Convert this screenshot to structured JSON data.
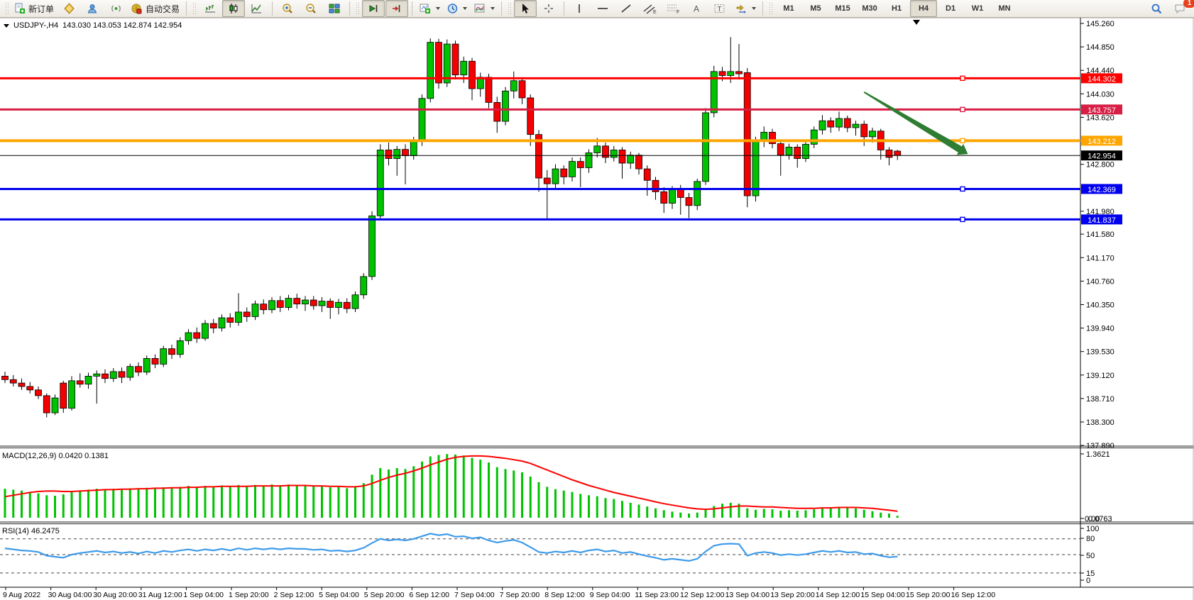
{
  "toolbar": {
    "new_order_label": "新订单",
    "auto_trading_label": "自动交易",
    "timeframes": [
      "M1",
      "M5",
      "M15",
      "M30",
      "H1",
      "H4",
      "D1",
      "W1",
      "MN"
    ],
    "active_timeframe": "H4",
    "notification_badge": "1",
    "icon_letters": {
      "text_tool": "A",
      "label_tool": "T",
      "channel_tool": "E",
      "fibo_tool": "F"
    }
  },
  "header": {
    "symbol_period": "USDJPY-,H4",
    "ohlc": "143.030 143.053 142.874 142.954"
  },
  "indicators": {
    "macd": {
      "label": "MACD(12,26,9) 0.0420 0.1381",
      "axis_max": "1.3621",
      "axis_min_primary": "0.0763",
      "axis_min_overlap": "0.00"
    },
    "rsi": {
      "label": "RSI(14) 46.2475",
      "axis_labels": [
        "100",
        "80",
        "50",
        "15",
        "0"
      ]
    }
  },
  "chart_data": {
    "type": "candlestick",
    "symbol": "USDJPY-",
    "timeframe": "H4",
    "title": "USDJPY-,H4",
    "ohlc_current": {
      "open": 143.03,
      "high": 143.053,
      "low": 142.874,
      "close": 142.954
    },
    "colors": {
      "up": "#00C300",
      "down": "#F50000",
      "wick": "#000000",
      "macd_hist": "#00C300",
      "macd_signal": "#FF0000",
      "rsi": "#3E9BEA",
      "level_dash": "#444444"
    },
    "y_axis": {
      "min": 137.89,
      "max": 145.26,
      "tick_labels": [
        "145.260",
        "144.850",
        "144.440",
        "144.030",
        "143.620",
        "142.800",
        "141.980",
        "141.580",
        "141.170",
        "140.760",
        "140.350",
        "139.940",
        "139.530",
        "139.120",
        "138.710",
        "138.300",
        "137.890"
      ]
    },
    "x_labels": [
      "9 Aug 2022",
      "30 Aug 04:00",
      "30 Aug 20:00",
      "31 Aug 12:00",
      "1 Sep 04:00",
      "1 Sep 20:00",
      "2 Sep 12:00",
      "5 Sep 04:00",
      "5 Sep 20:00",
      "6 Sep 12:00",
      "7 Sep 04:00",
      "7 Sep 20:00",
      "8 Sep 12:00",
      "9 Sep 04:00",
      "11 Sep 23:00",
      "12 Sep 12:00",
      "13 Sep 04:00",
      "13 Sep 20:00",
      "14 Sep 12:00",
      "15 Sep 04:00",
      "15 Sep 20:00",
      "16 Sep 12:00"
    ],
    "hlines": [
      {
        "value": 144.302,
        "label": "144.302",
        "color": "#FF0000",
        "width": 3
      },
      {
        "value": 143.757,
        "label": "143.757",
        "color": "#D81E45",
        "width": 3
      },
      {
        "value": 143.212,
        "label": "143.212",
        "color": "#FFA500",
        "width": 4
      },
      {
        "value": 142.954,
        "label": "142.954",
        "color": "#000000",
        "width": 1
      },
      {
        "value": 142.369,
        "label": "142.369",
        "color": "#0000EE",
        "width": 3
      },
      {
        "value": 141.837,
        "label": "141.837",
        "color": "#0000EE",
        "width": 3
      }
    ],
    "candles": [
      [
        139.1,
        139.18,
        138.98,
        139.04
      ],
      [
        139.04,
        139.12,
        138.92,
        138.98
      ],
      [
        138.98,
        139.06,
        138.86,
        138.92
      ],
      [
        138.92,
        139.0,
        138.8,
        138.86
      ],
      [
        138.86,
        138.92,
        138.7,
        138.76
      ],
      [
        138.76,
        138.8,
        138.38,
        138.46
      ],
      [
        138.46,
        138.78,
        138.42,
        138.72
      ],
      [
        138.98,
        139.02,
        138.46,
        138.54
      ],
      [
        138.54,
        139.1,
        138.5,
        139.02
      ],
      [
        139.02,
        139.15,
        138.9,
        138.96
      ],
      [
        138.96,
        139.16,
        138.88,
        139.1
      ],
      [
        139.1,
        139.2,
        138.62,
        139.14
      ],
      [
        139.14,
        139.22,
        138.98,
        139.06
      ],
      [
        139.06,
        139.24,
        139.0,
        139.18
      ],
      [
        139.18,
        139.25,
        138.98,
        139.08
      ],
      [
        139.08,
        139.32,
        139.02,
        139.27
      ],
      [
        139.27,
        139.34,
        139.1,
        139.17
      ],
      [
        139.17,
        139.46,
        139.12,
        139.41
      ],
      [
        139.41,
        139.48,
        139.24,
        139.31
      ],
      [
        139.31,
        139.63,
        139.26,
        139.58
      ],
      [
        139.58,
        139.65,
        139.4,
        139.48
      ],
      [
        139.48,
        139.78,
        139.42,
        139.72
      ],
      [
        139.72,
        139.92,
        139.65,
        139.86
      ],
      [
        139.86,
        139.95,
        139.68,
        139.76
      ],
      [
        139.76,
        140.08,
        139.72,
        140.02
      ],
      [
        140.02,
        140.1,
        139.85,
        139.94
      ],
      [
        139.94,
        140.18,
        139.88,
        140.12
      ],
      [
        140.12,
        140.2,
        139.95,
        140.04
      ],
      [
        140.04,
        140.55,
        139.98,
        140.22
      ],
      [
        140.22,
        140.3,
        140.05,
        140.14
      ],
      [
        140.14,
        140.42,
        140.08,
        140.36
      ],
      [
        140.36,
        140.44,
        140.18,
        140.26
      ],
      [
        140.26,
        140.48,
        140.2,
        140.42
      ],
      [
        140.42,
        140.5,
        140.22,
        140.3
      ],
      [
        140.3,
        140.52,
        140.25,
        140.46
      ],
      [
        140.46,
        140.54,
        140.28,
        140.36
      ],
      [
        140.36,
        140.5,
        140.24,
        140.43
      ],
      [
        140.43,
        140.5,
        140.26,
        140.33
      ],
      [
        140.33,
        140.48,
        140.22,
        140.41
      ],
      [
        140.41,
        140.46,
        140.1,
        140.3
      ],
      [
        140.3,
        140.45,
        140.18,
        140.39
      ],
      [
        140.39,
        140.46,
        140.2,
        140.28
      ],
      [
        140.28,
        140.58,
        140.22,
        140.52
      ],
      [
        140.52,
        140.9,
        140.45,
        140.84
      ],
      [
        140.84,
        141.98,
        140.78,
        141.9
      ],
      [
        141.9,
        143.15,
        141.85,
        143.05
      ],
      [
        143.05,
        143.18,
        142.78,
        142.9
      ],
      [
        142.9,
        143.12,
        142.6,
        143.06
      ],
      [
        143.06,
        143.15,
        142.45,
        142.95
      ],
      [
        142.95,
        143.28,
        142.88,
        143.2
      ],
      [
        143.2,
        144.02,
        143.12,
        143.95
      ],
      [
        143.95,
        145.0,
        143.88,
        144.93
      ],
      [
        144.93,
        144.99,
        144.12,
        144.22
      ],
      [
        144.22,
        144.98,
        144.15,
        144.9
      ],
      [
        144.9,
        144.96,
        144.28,
        144.36
      ],
      [
        144.36,
        144.68,
        144.22,
        144.6
      ],
      [
        144.6,
        144.66,
        143.92,
        144.12
      ],
      [
        144.12,
        144.4,
        143.98,
        144.32
      ],
      [
        144.32,
        144.38,
        143.78,
        143.88
      ],
      [
        143.88,
        143.98,
        143.35,
        143.55
      ],
      [
        143.55,
        144.15,
        143.48,
        144.08
      ],
      [
        144.08,
        144.42,
        143.95,
        144.26
      ],
      [
        144.26,
        144.32,
        143.85,
        143.96
      ],
      [
        143.96,
        144.02,
        143.12,
        143.32
      ],
      [
        143.32,
        143.4,
        142.32,
        142.56
      ],
      [
        142.56,
        142.7,
        141.84,
        142.46
      ],
      [
        142.46,
        142.8,
        142.35,
        142.72
      ],
      [
        142.72,
        142.78,
        142.45,
        142.58
      ],
      [
        142.58,
        142.92,
        142.5,
        142.85
      ],
      [
        142.85,
        142.92,
        142.4,
        142.74
      ],
      [
        142.74,
        143.06,
        142.65,
        143.0
      ],
      [
        143.0,
        143.26,
        142.92,
        143.12
      ],
      [
        143.12,
        143.18,
        142.82,
        142.92
      ],
      [
        142.92,
        143.12,
        142.85,
        143.05
      ],
      [
        143.05,
        143.1,
        142.55,
        142.82
      ],
      [
        142.82,
        143.02,
        142.72,
        142.96
      ],
      [
        142.96,
        143.0,
        142.62,
        142.72
      ],
      [
        142.72,
        142.78,
        142.25,
        142.52
      ],
      [
        142.52,
        142.58,
        142.18,
        142.32
      ],
      [
        142.32,
        142.4,
        141.95,
        142.12
      ],
      [
        142.12,
        142.42,
        142.02,
        142.36
      ],
      [
        142.36,
        142.44,
        141.92,
        142.22
      ],
      [
        142.22,
        142.3,
        141.86,
        142.08
      ],
      [
        142.08,
        142.55,
        142.0,
        142.5
      ],
      [
        142.5,
        143.78,
        142.44,
        143.7
      ],
      [
        143.7,
        144.52,
        143.62,
        144.42
      ],
      [
        144.42,
        144.5,
        144.25,
        144.35
      ],
      [
        144.35,
        145.02,
        144.22,
        144.42
      ],
      [
        144.42,
        144.9,
        144.28,
        144.38
      ],
      [
        144.4,
        144.48,
        142.05,
        142.25
      ],
      [
        142.25,
        143.28,
        142.15,
        143.2
      ],
      [
        143.2,
        143.46,
        143.1,
        143.36
      ],
      [
        143.36,
        143.42,
        143.08,
        143.16
      ],
      [
        143.16,
        143.22,
        142.6,
        142.96
      ],
      [
        142.96,
        143.16,
        142.88,
        143.1
      ],
      [
        143.1,
        143.15,
        142.74,
        142.9
      ],
      [
        142.9,
        143.2,
        142.84,
        143.15
      ],
      [
        143.15,
        143.46,
        143.08,
        143.4
      ],
      [
        143.4,
        143.66,
        143.32,
        143.56
      ],
      [
        143.56,
        143.62,
        143.35,
        143.45
      ],
      [
        143.45,
        143.72,
        143.38,
        143.6
      ],
      [
        143.6,
        143.65,
        143.36,
        143.44
      ],
      [
        143.44,
        143.56,
        143.3,
        143.5
      ],
      [
        143.5,
        143.56,
        143.12,
        143.28
      ],
      [
        143.28,
        143.44,
        143.18,
        143.38
      ],
      [
        143.38,
        143.42,
        142.88,
        143.05
      ],
      [
        143.05,
        143.1,
        142.78,
        142.92
      ],
      [
        143.03,
        143.053,
        142.874,
        142.954
      ]
    ],
    "macd": {
      "params": "12,26,9",
      "main": 0.042,
      "signal_value": 0.1381,
      "axis_max": 1.3621,
      "hist": [
        0.62,
        0.6,
        0.58,
        0.55,
        0.52,
        0.48,
        0.47,
        0.5,
        0.55,
        0.58,
        0.6,
        0.62,
        0.6,
        0.62,
        0.6,
        0.63,
        0.61,
        0.64,
        0.62,
        0.65,
        0.63,
        0.66,
        0.68,
        0.65,
        0.68,
        0.66,
        0.69,
        0.66,
        0.7,
        0.67,
        0.7,
        0.68,
        0.71,
        0.68,
        0.71,
        0.69,
        0.7,
        0.67,
        0.68,
        0.65,
        0.66,
        0.63,
        0.66,
        0.74,
        0.92,
        1.06,
        1.03,
        1.06,
        1.04,
        1.1,
        1.2,
        1.31,
        1.34,
        1.36,
        1.35,
        1.33,
        1.28,
        1.24,
        1.18,
        1.08,
        1.04,
        1.01,
        0.97,
        0.88,
        0.76,
        0.66,
        0.61,
        0.58,
        0.55,
        0.51,
        0.48,
        0.46,
        0.42,
        0.4,
        0.36,
        0.32,
        0.28,
        0.24,
        0.2,
        0.16,
        0.13,
        0.11,
        0.09,
        0.11,
        0.17,
        0.25,
        0.3,
        0.32,
        0.3,
        0.2,
        0.17,
        0.19,
        0.18,
        0.15,
        0.16,
        0.15,
        0.16,
        0.18,
        0.21,
        0.22,
        0.23,
        0.21,
        0.2,
        0.17,
        0.14,
        0.11,
        0.09,
        0.042
      ],
      "signal": [
        0.45,
        0.48,
        0.51,
        0.54,
        0.56,
        0.57,
        0.57,
        0.56,
        0.56,
        0.57,
        0.58,
        0.59,
        0.6,
        0.6,
        0.61,
        0.61,
        0.62,
        0.62,
        0.63,
        0.63,
        0.64,
        0.64,
        0.65,
        0.65,
        0.66,
        0.66,
        0.67,
        0.67,
        0.67,
        0.67,
        0.68,
        0.68,
        0.68,
        0.68,
        0.69,
        0.69,
        0.69,
        0.68,
        0.68,
        0.67,
        0.67,
        0.66,
        0.66,
        0.68,
        0.73,
        0.8,
        0.86,
        0.91,
        0.95,
        1.0,
        1.06,
        1.13,
        1.19,
        1.25,
        1.29,
        1.31,
        1.32,
        1.32,
        1.31,
        1.29,
        1.27,
        1.24,
        1.21,
        1.16,
        1.09,
        1.02,
        0.95,
        0.88,
        0.81,
        0.75,
        0.69,
        0.64,
        0.59,
        0.54,
        0.5,
        0.46,
        0.42,
        0.38,
        0.34,
        0.3,
        0.27,
        0.24,
        0.21,
        0.19,
        0.18,
        0.19,
        0.21,
        0.23,
        0.25,
        0.25,
        0.24,
        0.23,
        0.23,
        0.22,
        0.21,
        0.2,
        0.2,
        0.2,
        0.21,
        0.21,
        0.22,
        0.22,
        0.22,
        0.21,
        0.2,
        0.18,
        0.16,
        0.138
      ]
    },
    "rsi": {
      "period": 14,
      "current": 46.2475,
      "levels": [
        80,
        50,
        15
      ],
      "values": [
        62,
        60,
        58,
        57,
        55,
        48,
        46,
        44,
        50,
        53,
        55,
        57,
        54,
        56,
        53,
        55,
        52,
        56,
        53,
        57,
        55,
        58,
        60,
        57,
        60,
        58,
        61,
        58,
        62,
        59,
        62,
        60,
        62,
        60,
        62,
        61,
        61,
        59,
        60,
        57,
        58,
        56,
        58,
        63,
        72,
        80,
        77,
        79,
        77,
        80,
        85,
        90,
        87,
        89,
        84,
        85,
        81,
        83,
        77,
        73,
        76,
        78,
        73,
        64,
        55,
        53,
        56,
        54,
        57,
        54,
        58,
        60,
        56,
        58,
        53,
        55,
        51,
        47,
        44,
        40,
        42,
        40,
        38,
        42,
        56,
        67,
        70,
        71,
        70,
        48,
        53,
        55,
        53,
        49,
        51,
        49,
        51,
        54,
        57,
        55,
        57,
        54,
        55,
        51,
        52,
        48,
        45,
        46.25
      ]
    },
    "annotation_arrow": {
      "from": {
        "index": 103,
        "price": 144.06
      },
      "to": {
        "index": 114.5,
        "price": 143.06
      },
      "color": "#2E7D32"
    }
  }
}
